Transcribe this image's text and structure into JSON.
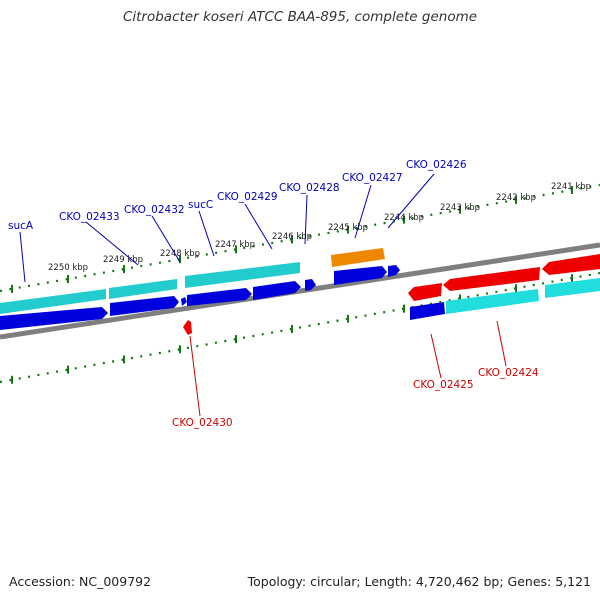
{
  "title": "Citrobacter koseri ATCC BAA-895, complete genome",
  "footer": {
    "accession": "Accession: NC_009792",
    "summary": "Topology: circular; Length: 4,720,462 bp; Genes: 5,121"
  },
  "colors": {
    "backbone": "#7f7f7f",
    "cds_forward": "#0000dd",
    "cds_reverse": "#ee0000",
    "gene_forward": "#22cccc",
    "gene_reverse": "#22dddd",
    "orange_feature": "#ee8800",
    "tick": "#117711",
    "label_forward": "#0000bb",
    "label_reverse": "#cc0000",
    "kbp_label": "#222222"
  },
  "kbp_labels": [
    "2250 kbp",
    "2249 kbp",
    "2248 kbp",
    "2247 kbp",
    "2246 kbp",
    "2245 kbp",
    "2244 kbp",
    "2243 kbp",
    "2242 kbp",
    "2241 kbp"
  ],
  "features": {
    "forward_labels": [
      "sucA",
      "CKO_02433",
      "CKO_02432",
      "sucC",
      "CKO_02429",
      "CKO_02428",
      "CKO_02427",
      "CKO_02426"
    ],
    "reverse_labels": [
      "CKO_02430",
      "CKO_02425",
      "CKO_02424"
    ]
  }
}
